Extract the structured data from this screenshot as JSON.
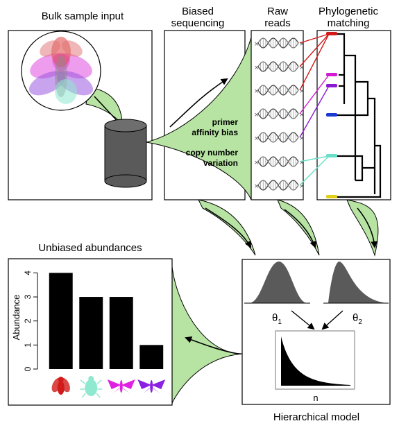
{
  "labels": {
    "bulk_input": "Bulk sample input",
    "biased_seq_line1": "Biased",
    "biased_seq_line2": "sequencing",
    "raw_reads_line1": "Raw",
    "raw_reads_line2": "reads",
    "phylo_line1": "Phylogenetic",
    "phylo_line2": "matching",
    "primer_line1": "primer",
    "primer_line2": "affinity bias",
    "copy_line1": "copy number",
    "copy_line2": "variation",
    "unbiased": "Unbiased abundances",
    "hier_model": "Hierarchical model",
    "theta1": "θ",
    "theta1_sub": "1",
    "theta2": "θ",
    "theta2_sub": "2",
    "n_label": "n"
  },
  "colors": {
    "green_fill": "#b7e4a3",
    "cylinder": "#5a5a5a",
    "red": "#d11a1a",
    "magenta": "#d11ad1",
    "purple": "#8a1ad1",
    "cyan": "#66e0c8",
    "blue": "#1a3ad1",
    "yellow": "#e0d01a"
  },
  "chart_data": {
    "type": "bar",
    "categories": [
      "fly",
      "beetle",
      "moth",
      "moth"
    ],
    "category_icons": [
      "fly-icon",
      "beetle-icon",
      "moth-icon",
      "moth-icon"
    ],
    "category_colors": [
      "#d11a1a",
      "#8fe8d0",
      "#e020e0",
      "#8a20e0"
    ],
    "values": [
      4,
      3,
      3,
      1
    ],
    "ylabel": "Abundance",
    "yticks": [
      0,
      1,
      2,
      3,
      4
    ],
    "ylim": [
      0,
      4.3
    ]
  }
}
